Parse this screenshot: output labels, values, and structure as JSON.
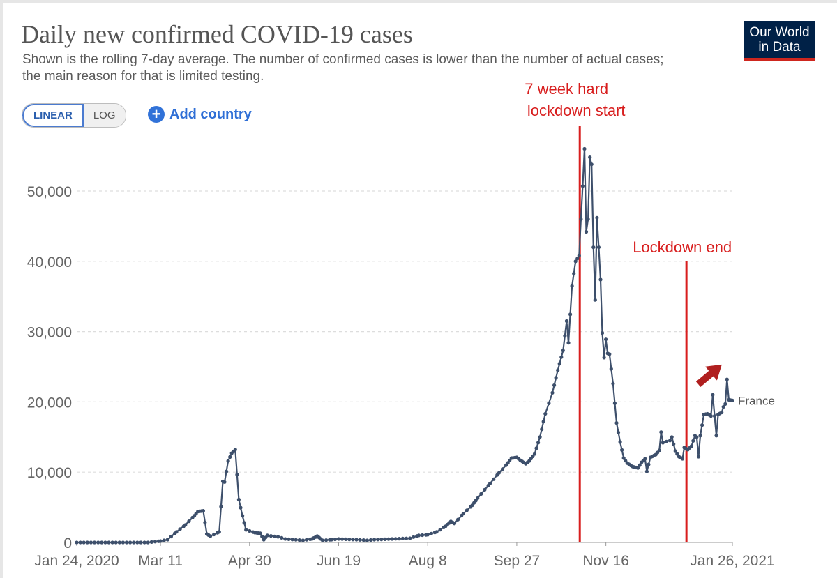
{
  "header": {
    "title": "Daily new confirmed COVID-19 cases",
    "subtitle_line1": "Shown is the rolling 7-day average. The number of confirmed cases is lower than the number of actual cases;",
    "subtitle_line2": "the main reason for that is limited testing."
  },
  "logo": {
    "line1": "Our World",
    "line2": "in Data"
  },
  "controls": {
    "linear_label": "LINEAR",
    "log_label": "LOG",
    "add_country_label": "Add country"
  },
  "colors": {
    "series": "#3d4f6b",
    "annotation": "#d81e1e",
    "arrow": "#b01f1f",
    "grid": "#dddddd"
  },
  "chart_data": {
    "type": "line",
    "title": "Daily new confirmed COVID-19 cases",
    "ylim": [
      0,
      55000
    ],
    "yticks": [
      0,
      10000,
      20000,
      30000,
      40000,
      50000
    ],
    "ytick_labels": [
      "0",
      "10,000",
      "20,000",
      "30,000",
      "40,000",
      "50,000"
    ],
    "xlim": [
      "2020-01-24",
      "2021-01-26"
    ],
    "xticks": [
      "2020-01-24",
      "2020-03-11",
      "2020-04-30",
      "2020-06-19",
      "2020-08-08",
      "2020-09-27",
      "2020-11-16",
      "2021-01-26"
    ],
    "xtick_labels": [
      "Jan 24, 2020",
      "Mar 11",
      "Apr 30",
      "Jun 19",
      "Aug 8",
      "Sep 27",
      "Nov 16",
      "Jan 26, 2021"
    ],
    "grid": true,
    "series": [
      {
        "name": "France",
        "points": [
          [
            "2020-01-24",
            0
          ],
          [
            "2020-02-15",
            0
          ],
          [
            "2020-03-04",
            0
          ],
          [
            "2020-03-11",
            200
          ],
          [
            "2020-03-15",
            400
          ],
          [
            "2020-03-20",
            1500
          ],
          [
            "2020-03-25",
            2500
          ],
          [
            "2020-03-30",
            3800
          ],
          [
            "2020-04-01",
            4400
          ],
          [
            "2020-04-04",
            4500
          ],
          [
            "2020-04-06",
            1200
          ],
          [
            "2020-04-08",
            900
          ],
          [
            "2020-04-13",
            1500
          ],
          [
            "2020-04-15",
            8700
          ],
          [
            "2020-04-16",
            8600
          ],
          [
            "2020-04-18",
            11600
          ],
          [
            "2020-04-20",
            12700
          ],
          [
            "2020-04-22",
            13200
          ],
          [
            "2020-04-24",
            6100
          ],
          [
            "2020-04-26",
            3800
          ],
          [
            "2020-04-28",
            1800
          ],
          [
            "2020-05-03",
            1400
          ],
          [
            "2020-05-06",
            1300
          ],
          [
            "2020-05-08",
            400
          ],
          [
            "2020-05-10",
            1000
          ],
          [
            "2020-05-16",
            800
          ],
          [
            "2020-05-20",
            500
          ],
          [
            "2020-05-30",
            300
          ],
          [
            "2020-06-04",
            500
          ],
          [
            "2020-06-07",
            900
          ],
          [
            "2020-06-10",
            300
          ],
          [
            "2020-06-15",
            400
          ],
          [
            "2020-06-19",
            500
          ],
          [
            "2020-06-29",
            400
          ],
          [
            "2020-07-05",
            300
          ],
          [
            "2020-07-09",
            400
          ],
          [
            "2020-07-19",
            500
          ],
          [
            "2020-07-29",
            600
          ],
          [
            "2020-08-03",
            1000
          ],
          [
            "2020-08-08",
            1100
          ],
          [
            "2020-08-13",
            1500
          ],
          [
            "2020-08-18",
            2300
          ],
          [
            "2020-08-21",
            3000
          ],
          [
            "2020-08-23",
            2700
          ],
          [
            "2020-08-28",
            4100
          ],
          [
            "2020-09-02",
            5300
          ],
          [
            "2020-09-05",
            6300
          ],
          [
            "2020-09-12",
            8400
          ],
          [
            "2020-09-17",
            9900
          ],
          [
            "2020-09-21",
            11000
          ],
          [
            "2020-09-24",
            12000
          ],
          [
            "2020-09-27",
            12100
          ],
          [
            "2020-09-29",
            11700
          ],
          [
            "2020-10-02",
            11200
          ],
          [
            "2020-10-04",
            11600
          ],
          [
            "2020-10-07",
            12600
          ],
          [
            "2020-10-10",
            15000
          ],
          [
            "2020-10-13",
            18300
          ],
          [
            "2020-10-17",
            21300
          ],
          [
            "2020-10-20",
            24500
          ],
          [
            "2020-10-23",
            27300
          ],
          [
            "2020-10-25",
            31500
          ],
          [
            "2020-10-26",
            28400
          ],
          [
            "2020-10-28",
            36500
          ],
          [
            "2020-10-30",
            40000
          ],
          [
            "2020-11-01",
            40800
          ],
          [
            "2020-11-02",
            46000
          ],
          [
            "2020-11-03",
            50700
          ],
          [
            "2020-11-04",
            56000
          ],
          [
            "2020-11-05",
            44200
          ],
          [
            "2020-11-06",
            46000
          ],
          [
            "2020-11-07",
            54800
          ],
          [
            "2020-11-08",
            53800
          ],
          [
            "2020-11-09",
            42000
          ],
          [
            "2020-11-10",
            34500
          ],
          [
            "2020-11-11",
            46200
          ],
          [
            "2020-11-12",
            42000
          ],
          [
            "2020-11-13",
            37400
          ],
          [
            "2020-11-14",
            29800
          ],
          [
            "2020-11-15",
            26300
          ],
          [
            "2020-11-16",
            28900
          ],
          [
            "2020-11-17",
            26900
          ],
          [
            "2020-11-18",
            26800
          ],
          [
            "2020-11-20",
            22600
          ],
          [
            "2020-11-22",
            17000
          ],
          [
            "2020-11-24",
            14300
          ],
          [
            "2020-11-26",
            12000
          ],
          [
            "2020-11-28",
            11300
          ],
          [
            "2020-12-01",
            10800
          ],
          [
            "2020-12-04",
            10600
          ],
          [
            "2020-12-06",
            11400
          ],
          [
            "2020-12-08",
            11900
          ],
          [
            "2020-12-09",
            10100
          ],
          [
            "2020-12-11",
            12100
          ],
          [
            "2020-12-14",
            12500
          ],
          [
            "2020-12-16",
            13100
          ],
          [
            "2020-12-17",
            15700
          ],
          [
            "2020-12-18",
            14200
          ],
          [
            "2020-12-22",
            14500
          ],
          [
            "2020-12-23",
            15000
          ],
          [
            "2020-12-25",
            13000
          ],
          [
            "2020-12-27",
            12200
          ],
          [
            "2020-12-29",
            11900
          ],
          [
            "2020-12-30",
            13500
          ],
          [
            "2021-01-01",
            13200
          ],
          [
            "2021-01-03",
            13700
          ],
          [
            "2021-01-05",
            15200
          ],
          [
            "2021-01-06",
            15000
          ],
          [
            "2021-01-07",
            12200
          ],
          [
            "2021-01-08",
            15200
          ],
          [
            "2021-01-10",
            18200
          ],
          [
            "2021-01-12",
            18300
          ],
          [
            "2021-01-14",
            18000
          ],
          [
            "2021-01-15",
            21000
          ],
          [
            "2021-01-16",
            18000
          ],
          [
            "2021-01-17",
            15200
          ],
          [
            "2021-01-18",
            18200
          ],
          [
            "2021-01-20",
            18500
          ],
          [
            "2021-01-21",
            19300
          ],
          [
            "2021-01-22",
            19700
          ],
          [
            "2021-01-23",
            23200
          ],
          [
            "2021-01-24",
            20300
          ],
          [
            "2021-01-26",
            20200
          ]
        ]
      }
    ],
    "annotations": [
      {
        "date": "2020-10-30",
        "line1": "7 week hard",
        "line2": "lockdown start"
      },
      {
        "date": "2021-01-01",
        "line1": "Lockdown end",
        "line2": ""
      }
    ],
    "arrow_label": "up-arrow"
  }
}
